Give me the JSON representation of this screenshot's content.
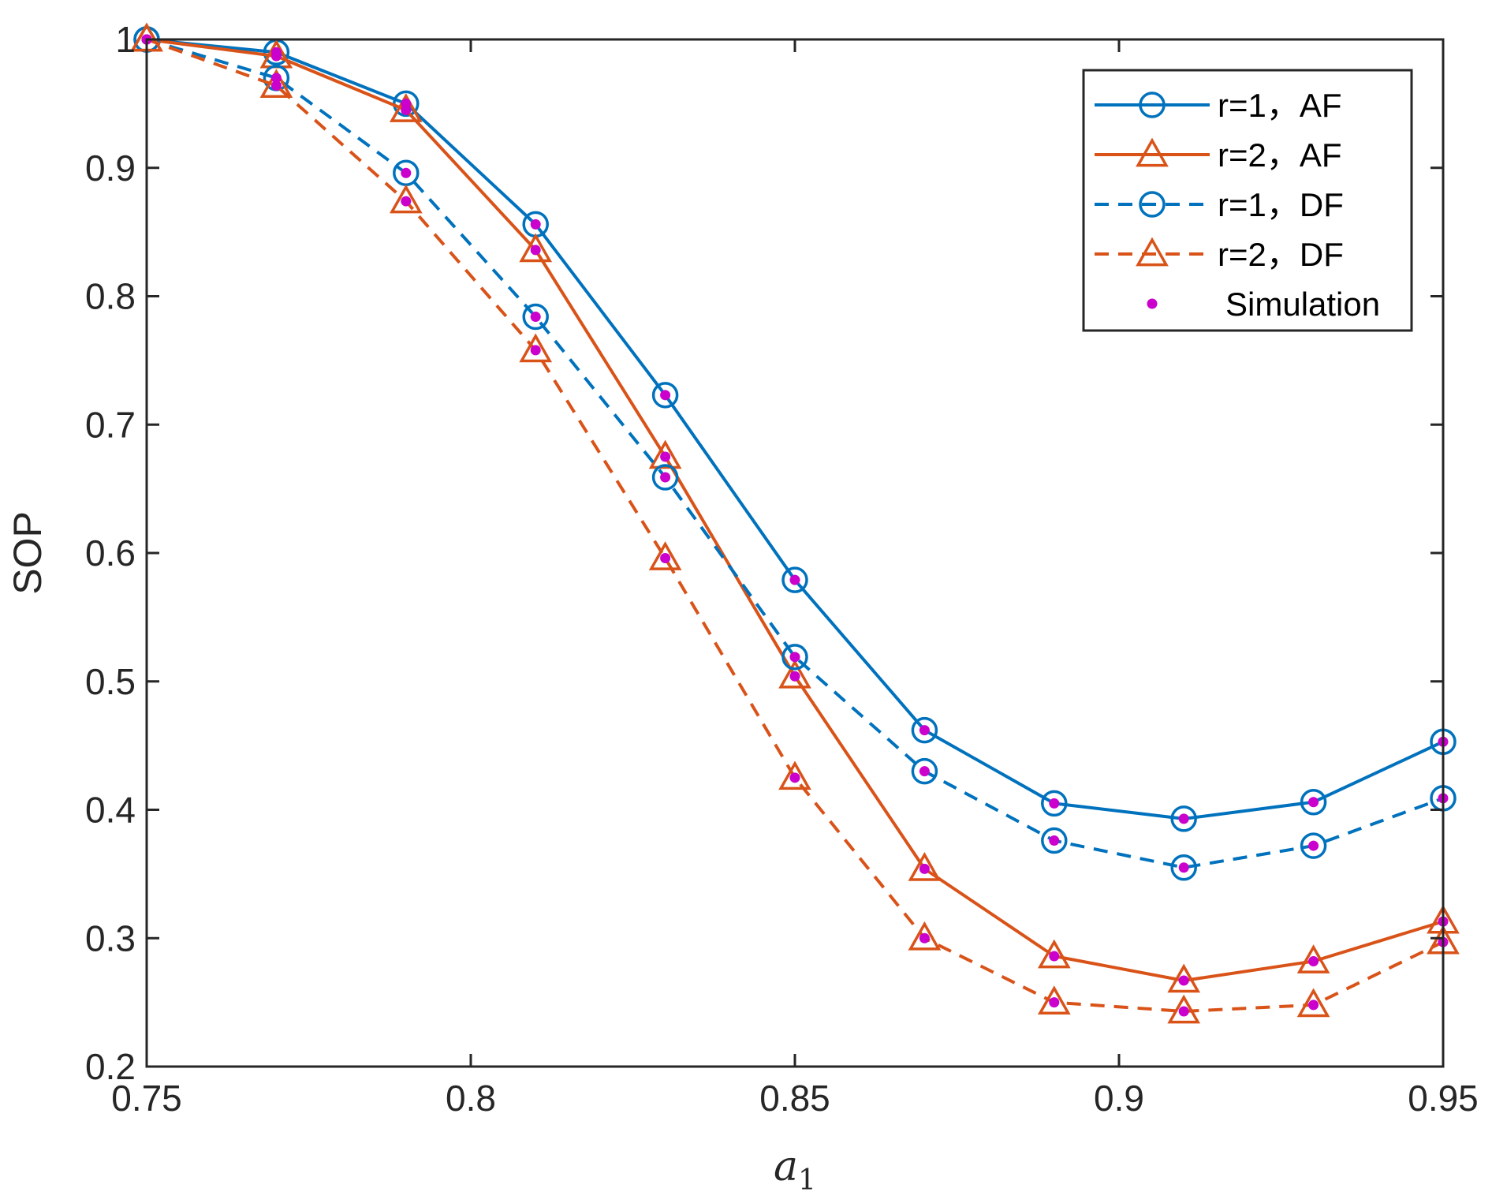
{
  "chart_data": {
    "type": "line",
    "title": "",
    "xlabel": "a",
    "xlabel_subscript": "1",
    "ylabel": "SOP",
    "xlim": [
      0.75,
      0.95
    ],
    "ylim": [
      0.2,
      1.0
    ],
    "xticks": [
      0.75,
      0.8,
      0.85,
      0.9,
      0.95
    ],
    "xtick_labels": [
      "0.75",
      "0.8",
      "0.85",
      "0.9",
      "0.95"
    ],
    "yticks": [
      0.2,
      0.3,
      0.4,
      0.5,
      0.6,
      0.7,
      0.8,
      0.9,
      1.0
    ],
    "ytick_labels": [
      "0.2",
      "0.3",
      "0.4",
      "0.5",
      "0.6",
      "0.7",
      "0.8",
      "0.9",
      "1"
    ],
    "grid": false,
    "legend_position": "top-right",
    "x": [
      0.75,
      0.77,
      0.79,
      0.81,
      0.83,
      0.85,
      0.87,
      0.89,
      0.91,
      0.93,
      0.95
    ],
    "series": [
      {
        "name": "r=1，AF",
        "color": "#0072BD",
        "line": "solid",
        "marker": "circle",
        "values": [
          1.0,
          0.99,
          0.95,
          0.856,
          0.723,
          0.579,
          0.462,
          0.405,
          0.393,
          0.406,
          0.453
        ]
      },
      {
        "name": "r=2，AF",
        "color": "#D95319",
        "line": "solid",
        "marker": "triangle",
        "values": [
          1.0,
          0.987,
          0.945,
          0.836,
          0.675,
          0.504,
          0.354,
          0.286,
          0.267,
          0.282,
          0.313
        ]
      },
      {
        "name": "r=1，DF",
        "color": "#0072BD",
        "line": "dashed",
        "marker": "circle",
        "values": [
          1.0,
          0.97,
          0.896,
          0.784,
          0.659,
          0.519,
          0.43,
          0.376,
          0.355,
          0.372,
          0.409
        ]
      },
      {
        "name": "r=2，DF",
        "color": "#D95319",
        "line": "dashed",
        "marker": "triangle",
        "values": [
          1.0,
          0.964,
          0.874,
          0.758,
          0.596,
          0.425,
          0.3,
          0.25,
          0.243,
          0.248,
          0.297
        ]
      }
    ],
    "simulation": {
      "name": "Simulation",
      "color": "#CC00CC",
      "marker": "dot",
      "points": [
        [
          0.75,
          1.0
        ],
        [
          0.77,
          0.99
        ],
        [
          0.79,
          0.95
        ],
        [
          0.81,
          0.856
        ],
        [
          0.83,
          0.723
        ],
        [
          0.85,
          0.579
        ],
        [
          0.87,
          0.462
        ],
        [
          0.89,
          0.405
        ],
        [
          0.91,
          0.393
        ],
        [
          0.93,
          0.406
        ],
        [
          0.95,
          0.453
        ],
        [
          0.75,
          1.0
        ],
        [
          0.77,
          0.987
        ],
        [
          0.79,
          0.945
        ],
        [
          0.81,
          0.836
        ],
        [
          0.83,
          0.675
        ],
        [
          0.85,
          0.504
        ],
        [
          0.87,
          0.354
        ],
        [
          0.89,
          0.286
        ],
        [
          0.91,
          0.267
        ],
        [
          0.93,
          0.282
        ],
        [
          0.95,
          0.313
        ],
        [
          0.75,
          1.0
        ],
        [
          0.77,
          0.97
        ],
        [
          0.79,
          0.896
        ],
        [
          0.81,
          0.784
        ],
        [
          0.83,
          0.659
        ],
        [
          0.85,
          0.519
        ],
        [
          0.87,
          0.43
        ],
        [
          0.89,
          0.376
        ],
        [
          0.91,
          0.355
        ],
        [
          0.93,
          0.372
        ],
        [
          0.95,
          0.409
        ],
        [
          0.75,
          1.0
        ],
        [
          0.77,
          0.964
        ],
        [
          0.79,
          0.874
        ],
        [
          0.81,
          0.758
        ],
        [
          0.83,
          0.596
        ],
        [
          0.85,
          0.425
        ],
        [
          0.87,
          0.3
        ],
        [
          0.89,
          0.25
        ],
        [
          0.91,
          0.243
        ],
        [
          0.93,
          0.248
        ],
        [
          0.95,
          0.297
        ]
      ]
    }
  }
}
